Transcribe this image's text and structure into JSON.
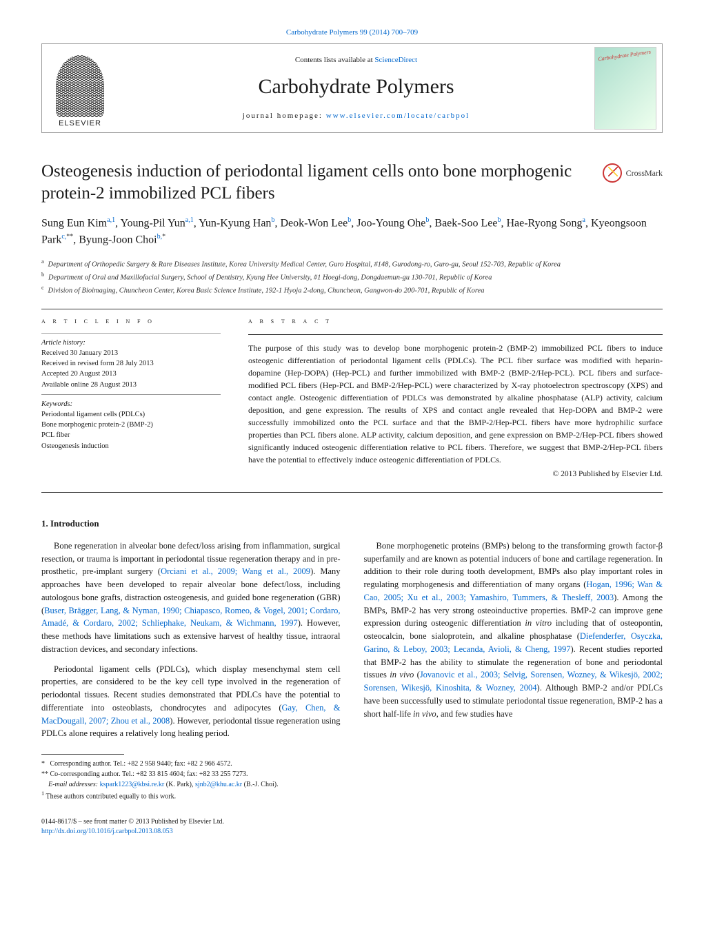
{
  "topLink": {
    "text": "Carbohydrate Polymers 99 (2014) 700–709",
    "href": "#"
  },
  "header": {
    "contentsPrefix": "Contents lists available at ",
    "contentsLink": "ScienceDirect",
    "journalTitle": "Carbohydrate Polymers",
    "homepageLabel": "journal homepage: ",
    "homepageLink": "www.elsevier.com/locate/carbpol",
    "elsevierName": "ELSEVIER",
    "coverLabel": "Carbohydrate Polymers"
  },
  "article": {
    "title": "Osteogenesis induction of periodontal ligament cells onto bone morphogenic protein-2 immobilized PCL fibers",
    "crossmarkLabel": "CrossMark",
    "authorsHtml": "Sung Eun Kim<sup>a,1</sup>, Young-Pil Yun<sup>a,1</sup>, Yun-Kyung Han<sup>b</sup>, Deok-Won Lee<sup>b</sup>, Joo-Young Ohe<sup>b</sup>, Baek-Soo Lee<sup>b</sup>, Hae-Ryong Song<sup>a</sup>, Kyeongsoon Park<sup>c,</sup><sup class=\"black\">**</sup>, Byung-Joon Choi<sup>b,</sup><sup class=\"black\">*</sup>",
    "affiliations": [
      {
        "sup": "a",
        "text": "Department of Orthopedic Surgery & Rare Diseases Institute, Korea University Medical Center, Guro Hospital, #148, Gurodong-ro, Guro-gu, Seoul 152-703, Republic of Korea"
      },
      {
        "sup": "b",
        "text": "Department of Oral and Maxillofacial Surgery, School of Dentistry, Kyung Hee University, #1 Hoegi-dong, Dongdaemun-gu 130-701, Republic of Korea"
      },
      {
        "sup": "c",
        "text": "Division of Bioimaging, Chuncheon Center, Korea Basic Science Institute, 192-1 Hyoja 2-dong, Chuncheon, Gangwon-do 200-701, Republic of Korea"
      }
    ]
  },
  "info": {
    "sectionLabel": "a r t i c l e   i n f o",
    "historyHeading": "Article history:",
    "history": [
      "Received 30 January 2013",
      "Received in revised form 28 July 2013",
      "Accepted 20 August 2013",
      "Available online 28 August 2013"
    ],
    "keywordsHeading": "Keywords:",
    "keywords": [
      "Periodontal ligament cells (PDLCs)",
      "Bone morphogenic protein-2 (BMP-2)",
      "PCL fiber",
      "Osteogenesis induction"
    ]
  },
  "abstract": {
    "sectionLabel": "a b s t r a c t",
    "text": "The purpose of this study was to develop bone morphogenic protein-2 (BMP-2) immobilized PCL fibers to induce osteogenic differentiation of periodontal ligament cells (PDLCs). The PCL fiber surface was modified with heparin-dopamine (Hep-DOPA) (Hep-PCL) and further immobilized with BMP-2 (BMP-2/Hep-PCL). PCL fibers and surface-modified PCL fibers (Hep-PCL and BMP-2/Hep-PCL) were characterized by X-ray photoelectron spectroscopy (XPS) and contact angle. Osteogenic differentiation of PDLCs was demonstrated by alkaline phosphatase (ALP) activity, calcium deposition, and gene expression. The results of XPS and contact angle revealed that Hep-DOPA and BMP-2 were successfully immobilized onto the PCL surface and that the BMP-2/Hep-PCL fibers have more hydrophilic surface properties than PCL fibers alone. ALP activity, calcium deposition, and gene expression on BMP-2/Hep-PCL fibers showed significantly induced osteogenic differentiation relative to PCL fibers. Therefore, we suggest that BMP-2/Hep-PCL fibers have the potential to effectively induce osteogenic differentiation of PDLCs.",
    "copyright": "© 2013 Published by Elsevier Ltd."
  },
  "intro": {
    "heading": "1.  Introduction",
    "paragraphs": [
      "Bone regeneration in alveolar bone defect/loss arising from inflammation, surgical resection, or trauma is important in periodontal tissue regeneration therapy and in pre-prosthetic, pre-implant surgery (<span class=\"link\">Orciani et al., 2009; Wang et al., 2009</span>). Many approaches have been developed to repair alveolar bone defect/loss, including autologous bone grafts, distraction osteogenesis, and guided bone regeneration (GBR) (<span class=\"link\">Buser, Brägger, Lang, & Nyman, 1990; Chiapasco, Romeo, & Vogel, 2001; Cordaro, Amadé, & Cordaro, 2002; Schliephake, Neukam, & Wichmann, 1997</span>). However, these methods have limitations such as extensive harvest of healthy tissue, intraoral distraction devices, and secondary infections.",
      "Periodontal ligament cells (PDLCs), which display mesenchymal stem cell properties, are considered to be the key cell type involved in the regeneration of periodontal tissues. Recent studies demonstrated that PDLCs have the potential to differentiate into osteoblasts, chondrocytes and adipocytes (<span class=\"link\">Gay, Chen, & MacDougall, 2007; Zhou et al., 2008</span>). However, periodontal tissue regeneration using PDLCs alone requires a relatively long healing period.",
      "Bone morphogenetic proteins (BMPs) belong to the transforming growth factor-β superfamily and are known as potential inducers of bone and cartilage regeneration. In addition to their role during tooth development, BMPs also play important roles in regulating morphogenesis and differentiation of many organs (<span class=\"link\">Hogan, 1996; Wan & Cao, 2005; Xu et al., 2003; Yamashiro, Tummers, & Thesleff, 2003</span>). Among the BMPs, BMP-2 has very strong osteoinductive properties. BMP-2 can improve gene expression during osteogenic differentiation <i>in vitro</i> including that of osteopontin, osteocalcin, bone sialoprotein, and alkaline phosphatase (<span class=\"link\">Diefenderfer, Osyczka, Garino, & Leboy, 2003; Lecanda, Avioli, & Cheng, 1997</span>). Recent studies reported that BMP-2 has the ability to stimulate the regeneration of bone and periodontal tissues <i>in vivo</i> (<span class=\"link\">Jovanovic et al., 2003; Selvig, Sorensen, Wozney, & Wikesjö, 2002; Sorensen, Wikesjö, Kinoshita, & Wozney, 2004</span>). Although BMP-2 and/or PDLCs have been successfully used to stimulate periodontal tissue regeneration, BMP-2 has a short half-life <i>in vivo</i>, and few studies have"
    ]
  },
  "footnotes": {
    "corr1": "Corresponding author. Tel.: +82 2 958 9440; fax: +82 2 966 4572.",
    "corr2": "Co-corresponding author. Tel.: +82 33 815 4604; fax: +82 33 255 7273.",
    "emailsLabel": "E-mail addresses:",
    "email1": "kspark1223@kbsi.re.kr",
    "email1who": "(K. Park),",
    "email2": "sjnb2@khu.ac.kr",
    "email2who": "(B.-J. Choi).",
    "equal": "These authors contributed equally to this work."
  },
  "bottom": {
    "line1": "0144-8617/$ – see front matter © 2013 Published by Elsevier Ltd.",
    "doi": "http://dx.doi.org/10.1016/j.carbpol.2013.08.053"
  },
  "colors": {
    "link": "#0066cc",
    "rule": "#333333",
    "coverAccent": "#cc3333"
  }
}
